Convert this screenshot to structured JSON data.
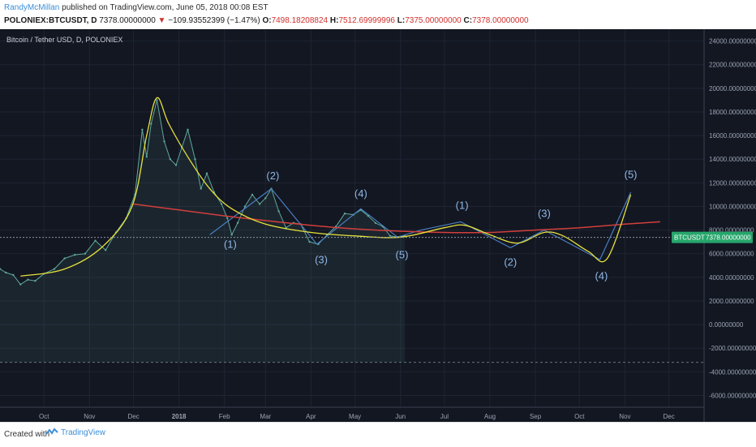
{
  "header": {
    "author": "RandyMcMillan",
    "published": "published on TradingView.com, June 05, 2018 00:08 EST",
    "symbol": "POLONIEX:BTCUSDT, D",
    "last": "7378.00000000",
    "change": "−109.93552399 (−1.47%)",
    "open_label": "O:",
    "open": "7498.18208824",
    "high_label": "H:",
    "high": "7512.69999996",
    "low_label": "L:",
    "low": "7375.00000000",
    "close_label": "C:",
    "close": "7378.00000000",
    "down_arrow": "▼"
  },
  "chart_title": "Bitcoin / Tether USD, D, POLONIEX",
  "footer": {
    "created_with": "Created with",
    "brand": "TradingView"
  },
  "colors": {
    "background": "#131722",
    "price": "#5fa89a",
    "yellow": "#e6e23a",
    "red": "#d23f3c",
    "blue": "#4a7fc0",
    "wave_label": "#8fb8e6",
    "badge": "#26a66b"
  },
  "chart_data": {
    "type": "line",
    "title": "Bitcoin / Tether USD, D, POLONIEX",
    "ylim": [
      -7000,
      25000
    ],
    "y_ticks": [
      "24000.00000000",
      "22000.00000000",
      "20000.00000000",
      "18000.00000000",
      "16000.00000000",
      "14000.00000000",
      "12000.00000000",
      "10000.00000000",
      "8000.00000000",
      "6000.00000000",
      "4000.00000000",
      "2000.00000000",
      "0.00000000",
      "-2000.00000000",
      "-4000.00000000",
      "-6000.00000000"
    ],
    "x_ticks": [
      "Oct",
      "Nov",
      "Dec",
      "2018",
      "Feb",
      "Mar",
      "Apr",
      "May",
      "Jun",
      "Jul",
      "Aug",
      "Sep",
      "Oct",
      "Nov",
      "Dec"
    ],
    "last_price_label": "BTCUSDT",
    "last_price": "7378.00000000",
    "series": [
      {
        "kind": "price",
        "x": [
          "2017-09-01",
          "2017-09-05",
          "2017-09-10",
          "2017-09-15",
          "2017-09-20",
          "2017-09-25",
          "2017-10-01",
          "2017-10-08",
          "2017-10-15",
          "2017-10-22",
          "2017-10-29",
          "2017-11-05",
          "2017-11-12",
          "2017-11-19",
          "2017-11-26",
          "2017-12-02",
          "2017-12-07",
          "2017-12-10",
          "2017-12-13",
          "2017-12-17",
          "2017-12-22",
          "2017-12-26",
          "2017-12-30",
          "2018-01-03",
          "2018-01-07",
          "2018-01-12",
          "2018-01-16",
          "2018-01-20",
          "2018-01-25",
          "2018-01-30",
          "2018-02-03",
          "2018-02-06",
          "2018-02-10",
          "2018-02-15",
          "2018-02-20",
          "2018-02-25",
          "2018-03-01",
          "2018-03-05",
          "2018-03-10",
          "2018-03-15",
          "2018-03-20",
          "2018-03-25",
          "2018-03-31",
          "2018-04-06",
          "2018-04-12",
          "2018-04-18",
          "2018-04-24",
          "2018-04-30",
          "2018-05-05",
          "2018-05-10",
          "2018-05-15",
          "2018-05-20",
          "2018-05-25",
          "2018-05-30",
          "2018-06-04"
        ],
        "values": [
          4700,
          4400,
          4200,
          3400,
          3800,
          3700,
          4300,
          4700,
          5600,
          5900,
          6000,
          7100,
          6300,
          7800,
          9000,
          11000,
          16500,
          14200,
          17000,
          19000,
          15500,
          14000,
          13500,
          15000,
          16500,
          14000,
          11500,
          12800,
          11200,
          10200,
          9000,
          7600,
          8600,
          10000,
          11000,
          10200,
          10700,
          11500,
          9600,
          8200,
          8600,
          8500,
          7000,
          6800,
          7600,
          8300,
          9400,
          9300,
          9700,
          9200,
          8600,
          8300,
          7500,
          7400,
          7500
        ]
      },
      {
        "kind": "yellow-fit",
        "x": [
          "2017-09-15",
          "2017-10-15",
          "2017-11-10",
          "2017-11-30",
          "2017-12-10",
          "2017-12-17",
          "2017-12-25",
          "2018-01-08",
          "2018-01-22",
          "2018-02-06",
          "2018-03-01",
          "2018-04-01",
          "2018-05-01",
          "2018-06-01",
          "2018-07-01",
          "2018-07-15",
          "2018-08-01",
          "2018-08-20",
          "2018-09-07",
          "2018-09-20",
          "2018-10-07",
          "2018-10-20",
          "2018-11-05"
        ],
        "values": [
          4100,
          4700,
          6600,
          10000,
          16000,
          19200,
          17000,
          14000,
          11500,
          9800,
          8500,
          7800,
          7500,
          7400,
          8200,
          8400,
          7600,
          6900,
          7800,
          7500,
          6200,
          5600,
          11000
        ]
      },
      {
        "kind": "red-trend",
        "x": [
          "2017-12-01",
          "2018-01-01",
          "2018-02-01",
          "2018-03-01",
          "2018-04-01",
          "2018-05-01",
          "2018-06-01",
          "2018-07-01",
          "2018-08-01",
          "2018-09-01",
          "2018-10-01",
          "2018-11-01",
          "2018-11-25"
        ],
        "values": [
          10200,
          9700,
          9200,
          8800,
          8400,
          8100,
          7900,
          7800,
          7800,
          8000,
          8200,
          8500,
          8700
        ]
      },
      {
        "kind": "blue-projection",
        "x": [
          "2018-01-22",
          "2018-03-05",
          "2018-04-05",
          "2018-05-05",
          "2018-05-30",
          "2018-06-15",
          "2018-07-12",
          "2018-08-15",
          "2018-09-07",
          "2018-10-15",
          "2018-11-05"
        ],
        "values": [
          7600,
          11500,
          6800,
          9800,
          7400,
          8000,
          8700,
          6500,
          8000,
          5500,
          11200
        ]
      }
    ],
    "annotations": [
      {
        "text": "(1)",
        "x": "2018-02-05",
        "y": 6500
      },
      {
        "text": "(2)",
        "x": "2018-03-06",
        "y": 12300
      },
      {
        "text": "(3)",
        "x": "2018-04-08",
        "y": 5200
      },
      {
        "text": "(4)",
        "x": "2018-05-05",
        "y": 10800
      },
      {
        "text": "(5)",
        "x": "2018-06-02",
        "y": 5600
      },
      {
        "text": "(1)",
        "x": "2018-07-13",
        "y": 9800
      },
      {
        "text": "(2)",
        "x": "2018-08-15",
        "y": 5000
      },
      {
        "text": "(3)",
        "x": "2018-09-07",
        "y": 9100
      },
      {
        "text": "(4)",
        "x": "2018-10-16",
        "y": 3800
      },
      {
        "text": "(5)",
        "x": "2018-11-05",
        "y": 12400
      }
    ]
  }
}
